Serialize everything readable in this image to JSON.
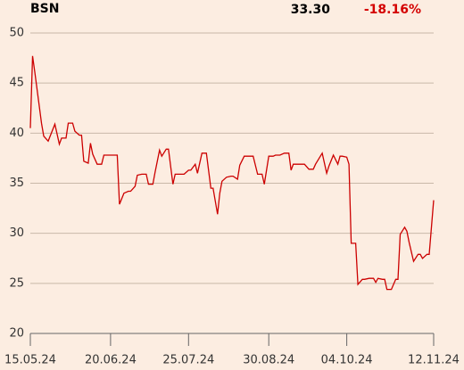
{
  "header": {
    "symbol": "BSN",
    "price": "33.30",
    "change": "-18.16%"
  },
  "chart_data": {
    "type": "line",
    "x": [
      "15.05.24",
      "16.05.24",
      "17.05.24",
      "19.05.24",
      "20.05.24",
      "21.05.24",
      "23.05.24",
      "26.05.24",
      "28.05.24",
      "29.05.24",
      "31.05.24",
      "01.06.24",
      "03.06.24",
      "04.06.24",
      "06.06.24",
      "07.06.24",
      "08.06.24",
      "10.06.24",
      "11.06.24",
      "12.06.24",
      "14.06.24",
      "16.06.24",
      "17.06.24",
      "20.06.24",
      "23.06.24",
      "24.06.24",
      "26.06.24",
      "28.06.24",
      "29.06.24",
      "01.07.24",
      "02.07.24",
      "04.07.24",
      "06.07.24",
      "07.07.24",
      "09.07.24",
      "10.07.24",
      "12.07.24",
      "13.07.24",
      "15.07.24",
      "16.07.24",
      "18.07.24",
      "19.07.24",
      "21.07.24",
      "23.07.24",
      "25.07.24",
      "26.07.24",
      "28.07.24",
      "29.07.24",
      "31.07.24",
      "02.08.24",
      "04.08.24",
      "05.08.24",
      "07.08.24",
      "08.08.24",
      "09.08.24",
      "11.08.24",
      "13.08.24",
      "14.08.24",
      "16.08.24",
      "17.08.24",
      "19.08.24",
      "21.08.24",
      "23.08.24",
      "25.08.24",
      "27.08.24",
      "28.08.24",
      "30.08.24",
      "01.09.24",
      "02.09.24",
      "04.09.24",
      "06.09.24",
      "08.09.24",
      "09.09.24",
      "10.09.24",
      "12.09.24",
      "14.09.24",
      "15.09.24",
      "17.09.24",
      "19.09.24",
      "20.09.24",
      "23.09.24",
      "25.09.24",
      "26.09.24",
      "28.09.24",
      "30.09.24",
      "01.10.24",
      "02.10.24",
      "04.10.24",
      "05.10.24",
      "06.10.24",
      "08.10.24",
      "09.10.24",
      "11.10.24",
      "12.10.24",
      "14.10.24",
      "16.10.24",
      "17.10.24",
      "18.10.24",
      "20.10.24",
      "21.10.24",
      "22.10.24",
      "24.10.24",
      "26.10.24",
      "27.10.24",
      "28.10.24",
      "30.10.24",
      "31.10.24",
      "01.11.24",
      "03.11.24",
      "05.11.24",
      "06.11.24",
      "07.11.24",
      "09.11.24",
      "10.11.24",
      "12.11.24"
    ],
    "series": [
      {
        "name": "BSN",
        "color": "#cc0000",
        "values": [
          40.5,
          47.7,
          46.1,
          42.7,
          41.0,
          39.7,
          39.2,
          40.9,
          38.9,
          39.5,
          39.5,
          41.0,
          41.0,
          40.2,
          39.8,
          39.8,
          37.2,
          37.0,
          39.0,
          37.9,
          36.9,
          36.9,
          37.8,
          37.8,
          37.8,
          32.9,
          34.0,
          34.2,
          34.2,
          34.7,
          35.8,
          35.9,
          35.9,
          34.9,
          34.9,
          36.1,
          38.3,
          37.7,
          38.4,
          38.4,
          34.9,
          35.9,
          35.9,
          35.9,
          36.3,
          36.3,
          36.9,
          36.0,
          38.0,
          38.0,
          34.5,
          34.5,
          31.9,
          34.0,
          35.2,
          35.6,
          35.7,
          35.7,
          35.4,
          36.8,
          37.7,
          37.7,
          37.7,
          35.9,
          35.9,
          34.9,
          37.7,
          37.7,
          37.8,
          37.8,
          38.0,
          38.0,
          36.3,
          36.9,
          36.9,
          36.9,
          36.9,
          36.4,
          36.4,
          36.9,
          38.0,
          36.0,
          36.7,
          37.8,
          36.9,
          37.7,
          37.7,
          37.6,
          36.9,
          29.0,
          29.0,
          24.9,
          25.4,
          25.4,
          25.5,
          25.5,
          25.1,
          25.5,
          25.4,
          25.4,
          24.4,
          24.4,
          25.4,
          25.4,
          29.9,
          30.6,
          30.2,
          29.1,
          27.2,
          27.9,
          27.9,
          27.5,
          27.9,
          27.9,
          33.3
        ]
      }
    ],
    "xlim": [
      "15.05.24",
      "12.11.24"
    ],
    "xticks": [
      "15.05.24",
      "20.06.24",
      "25.07.24",
      "30.08.24",
      "04.10.24",
      "12.11.24"
    ],
    "ylim": [
      20,
      50
    ],
    "yticks": [
      20,
      25,
      30,
      35,
      40,
      45,
      50
    ],
    "grid": true
  }
}
